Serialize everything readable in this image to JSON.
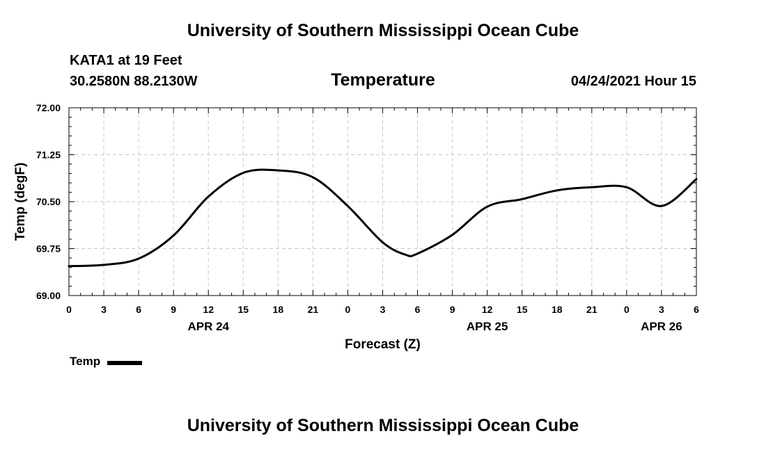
{
  "header": {
    "institution": "University of Southern Mississippi Ocean Cube",
    "station": "KATA1 at 19 Feet",
    "coordinates": "30.2580N  88.2130W",
    "datetime": "04/24/2021 Hour 15"
  },
  "footer": {
    "institution": "University of Southern Mississippi Ocean Cube"
  },
  "legend": {
    "label": "Temp"
  },
  "chart_data": {
    "type": "line",
    "title": "Temperature",
    "xlabel": "Forecast (Z)",
    "ylabel": "Temp (degF)",
    "xlim": [
      0,
      54
    ],
    "ylim": [
      69.0,
      72.0
    ],
    "grid": true,
    "y_ticks": [
      69.0,
      69.75,
      70.5,
      71.25,
      72.0
    ],
    "y_tick_labels": [
      "69.00",
      "69.75",
      "70.50",
      "71.25",
      "72.00"
    ],
    "x_ticks": [
      0,
      3,
      6,
      9,
      12,
      15,
      18,
      21,
      24,
      27,
      30,
      33,
      36,
      39,
      42,
      45,
      48,
      51,
      54
    ],
    "x_tick_labels": [
      "0",
      "3",
      "6",
      "9",
      "12",
      "15",
      "18",
      "21",
      "0",
      "3",
      "6",
      "9",
      "12",
      "15",
      "18",
      "21",
      "0",
      "3",
      "6"
    ],
    "date_labels": [
      {
        "hour": 12,
        "label": "APR 24"
      },
      {
        "hour": 36,
        "label": "APR 25"
      },
      {
        "hour": 51,
        "label": "APR 26"
      }
    ],
    "series": [
      {
        "name": "Temp",
        "color": "#000000",
        "x": [
          0,
          3,
          6,
          9,
          12,
          15,
          18,
          21,
          24,
          27,
          29,
          30,
          33,
          36,
          39,
          42,
          45,
          48,
          51,
          54
        ],
        "values": [
          69.47,
          69.49,
          69.59,
          69.96,
          70.58,
          70.96,
          71.0,
          70.89,
          70.43,
          69.85,
          69.65,
          69.67,
          69.97,
          70.42,
          70.54,
          70.68,
          70.73,
          70.73,
          70.43,
          70.86
        ]
      }
    ]
  }
}
